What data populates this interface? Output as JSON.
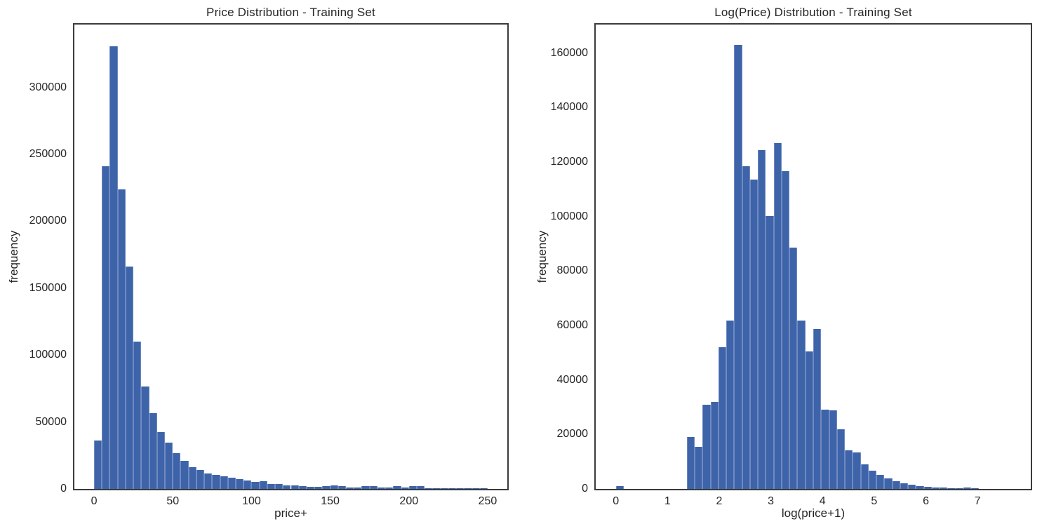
{
  "page": {
    "background": "#ffffff"
  },
  "colors": {
    "bar_fill": "#3d64a9",
    "bar_edge": "#7289c0",
    "spine": "#3b3b3b",
    "text": "#262626"
  },
  "chart_data": [
    {
      "id": "price-hist",
      "type": "bar",
      "title": "Price Distribution - Training Set",
      "xlabel": "price+",
      "ylabel": "frequency",
      "xlim": [
        -12.5,
        262.5
      ],
      "ylim": [
        0,
        347000
      ],
      "xticks": [
        0,
        50,
        100,
        150,
        200,
        250
      ],
      "yticks": [
        0,
        50000,
        100000,
        150000,
        200000,
        250000,
        300000
      ],
      "grid": false,
      "legend": "none",
      "bin_start": 0,
      "bin_width": 5,
      "values": [
        36000,
        241000,
        331000,
        224000,
        166000,
        110000,
        76500,
        56500,
        42500,
        34500,
        27000,
        21200,
        16500,
        14300,
        11800,
        10400,
        9200,
        8200,
        7300,
        6100,
        5200,
        5700,
        3500,
        3800,
        2600,
        2400,
        2200,
        1800,
        1400,
        2100,
        2600,
        2100,
        1300,
        1100,
        1900,
        2000,
        1100,
        900,
        2100,
        900,
        2000,
        1900,
        600,
        500,
        450,
        400,
        400,
        350,
        300,
        300
      ]
    },
    {
      "id": "logprice-hist",
      "type": "bar",
      "title": "Log(Price) Distribution - Training Set",
      "xlabel": "log(price+1)",
      "ylabel": "frequency",
      "xlim": [
        -0.39,
        8.03
      ],
      "ylim": [
        0,
        170500
      ],
      "xticks": [
        0,
        1,
        2,
        3,
        4,
        5,
        6,
        7
      ],
      "yticks": [
        0,
        20000,
        40000,
        60000,
        80000,
        100000,
        120000,
        140000,
        160000
      ],
      "grid": false,
      "legend": "none",
      "bin_start": 0,
      "bin_width": 0.1528,
      "values": [
        1100,
        0,
        0,
        0,
        0,
        0,
        0,
        0,
        0,
        19000,
        15500,
        31000,
        32000,
        52000,
        61800,
        163000,
        118500,
        113500,
        124500,
        100300,
        127000,
        116800,
        88700,
        61800,
        50500,
        58600,
        29200,
        28800,
        21800,
        14200,
        13400,
        9000,
        6800,
        5100,
        3800,
        2800,
        2100,
        1500,
        1100,
        800,
        600,
        450,
        350,
        250,
        400,
        150,
        0,
        0,
        0,
        0
      ]
    }
  ]
}
